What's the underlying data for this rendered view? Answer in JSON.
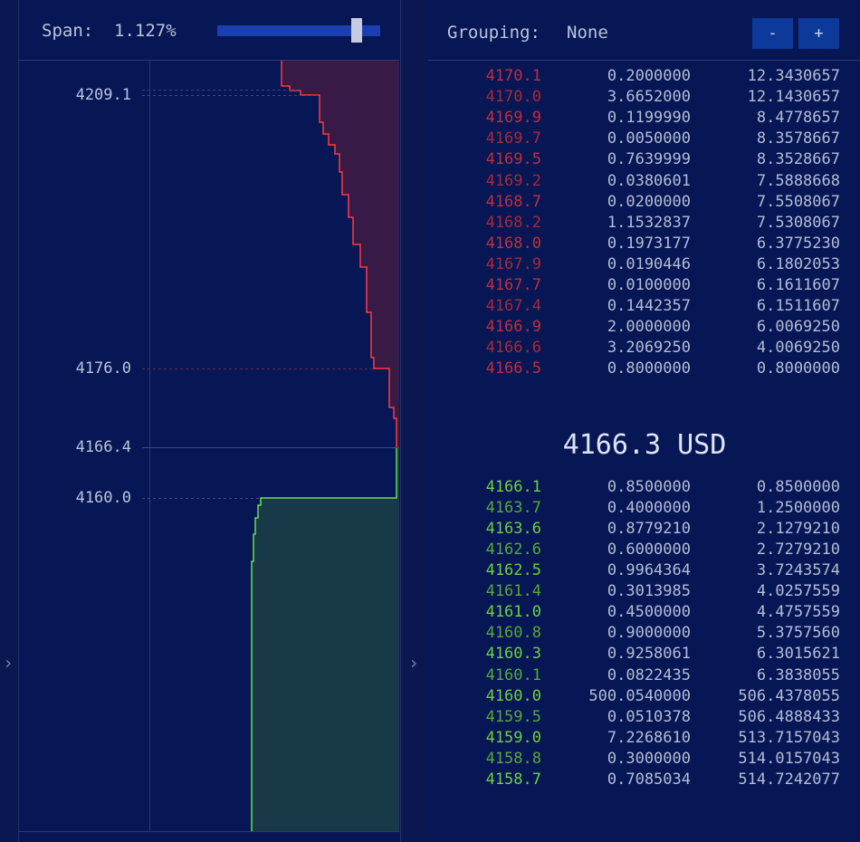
{
  "header": {
    "span_label": "Span:",
    "span_value": "1.127%",
    "grouping_label": "Grouping:",
    "grouping_value": "None",
    "buttons": [
      "-",
      "+"
    ]
  },
  "depth_chart": {
    "price_labels": [
      "4209.1",
      "4176.0",
      "4166.4",
      "4160.0"
    ]
  },
  "order_book": {
    "asks": [
      [
        "4170.1",
        "0.2000000",
        "12.3430657"
      ],
      [
        "4170.0",
        "3.6652000",
        "12.1430657"
      ],
      [
        "4169.9",
        "0.1199990",
        "8.4778657"
      ],
      [
        "4169.7",
        "0.0050000",
        "8.3578667"
      ],
      [
        "4169.5",
        "0.7639999",
        "8.3528667"
      ],
      [
        "4169.2",
        "0.0380601",
        "7.5888668"
      ],
      [
        "4168.7",
        "0.0200000",
        "7.5508067"
      ],
      [
        "4168.2",
        "1.1532837",
        "7.5308067"
      ],
      [
        "4168.0",
        "0.1973177",
        "6.3775230"
      ],
      [
        "4167.9",
        "0.0190446",
        "6.1802053"
      ],
      [
        "4167.7",
        "0.0100000",
        "6.1611607"
      ],
      [
        "4167.4",
        "0.1442357",
        "6.1511607"
      ],
      [
        "4166.9",
        "2.0000000",
        "6.0069250"
      ],
      [
        "4166.6",
        "3.2069250",
        "4.0069250"
      ],
      [
        "4166.5",
        "0.8000000",
        "0.8000000"
      ]
    ],
    "mid_price": "4166.3 USD",
    "bids": [
      [
        "4166.1",
        "0.8500000",
        "0.8500000"
      ],
      [
        "4163.7",
        "0.4000000",
        "1.2500000"
      ],
      [
        "4163.6",
        "0.8779210",
        "2.1279210"
      ],
      [
        "4162.6",
        "0.6000000",
        "2.7279210"
      ],
      [
        "4162.5",
        "0.9964364",
        "3.7243574"
      ],
      [
        "4161.4",
        "0.3013985",
        "4.0257559"
      ],
      [
        "4161.0",
        "0.4500000",
        "4.4757559"
      ],
      [
        "4160.8",
        "0.9000000",
        "5.3757560"
      ],
      [
        "4160.3",
        "0.9258061",
        "6.3015621"
      ],
      [
        "4160.1",
        "0.0822435",
        "6.3838055"
      ],
      [
        "4160.0",
        "500.0540000",
        "506.4378055"
      ],
      [
        "4159.5",
        "0.0510378",
        "506.4888433"
      ],
      [
        "4159.0",
        "7.2268610",
        "513.7157043"
      ],
      [
        "4158.8",
        "0.3000000",
        "514.0157043"
      ],
      [
        "4158.7",
        "0.7085034",
        "514.7242077"
      ]
    ]
  }
}
